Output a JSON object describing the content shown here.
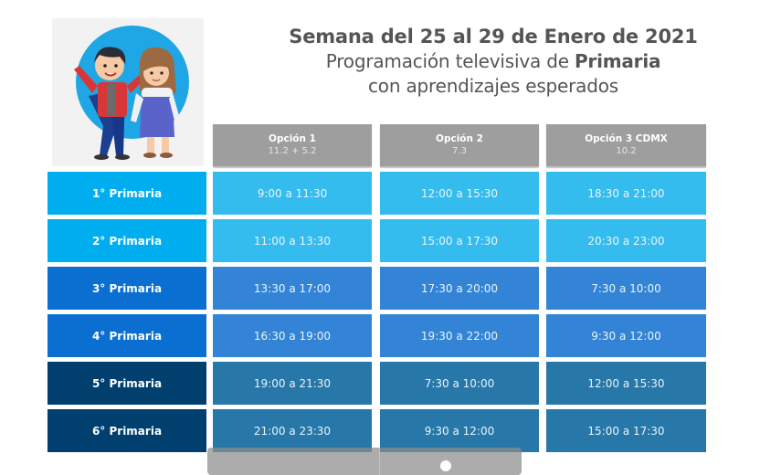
{
  "header": {
    "title_line1": "Semana del 25 al 29 de Enero de 2021",
    "title_line2_prefix": "Programación televisiva de ",
    "title_line2_bold": "Primaria",
    "title_line3": "con aprendizajes esperados"
  },
  "hero_image": {
    "alt": "niño y niña animados"
  },
  "columns": [
    {
      "name": "Opción 1",
      "channel": "11.2  +  5.2"
    },
    {
      "name": "Opción 2",
      "channel": "7.3"
    },
    {
      "name": "Opción 3 CDMX",
      "channel": "10.2"
    }
  ],
  "rows": [
    {
      "grade": "1° Primaria",
      "times": [
        "9:00 a 11:30",
        "12:00 a 15:30",
        "18:30 a 21:00"
      ]
    },
    {
      "grade": "2° Primaria",
      "times": [
        "11:00 a 13:30",
        "15:00 a 17:30",
        "20:30 a 23:00"
      ]
    },
    {
      "grade": "3° Primaria",
      "times": [
        "13:30 a 17:00",
        "17:30 a 20:00",
        "7:30 a 10:00"
      ]
    },
    {
      "grade": "4° Primaria",
      "times": [
        "16:30 a 19:00",
        "19:30 a 22:00",
        "9:30 a 12:00"
      ]
    },
    {
      "grade": "5° Primaria",
      "times": [
        "19:00 a 21:30",
        "7:30 a 10:00",
        "12:00 a 15:30"
      ]
    },
    {
      "grade": "6° Primaria",
      "times": [
        "21:00 a 23:30",
        "9:30 a 12:00",
        "15:00 a 17:30"
      ]
    }
  ],
  "colors": {
    "header_gray": "#9e9e9e",
    "label_rows": [
      "#00aeef",
      "#00aeef",
      "#0a6fd0",
      "#0a6fd0",
      "#003f6e",
      "#003f6e"
    ],
    "data_rows": [
      "#34bcef",
      "#34bcef",
      "#3384d6",
      "#3384d6",
      "#2777a8",
      "#2777a8"
    ],
    "title_text": "#555555"
  }
}
